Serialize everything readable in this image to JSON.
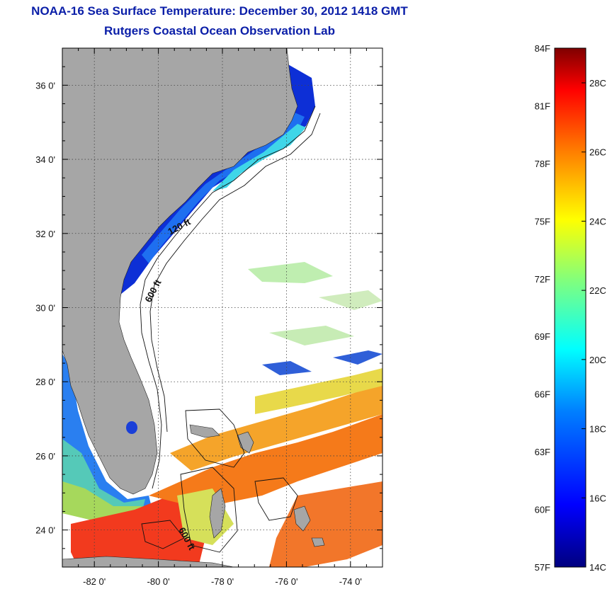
{
  "title": {
    "line1": "NOAA-16 Sea Surface Temperature:  December 30, 2012 1418 GMT",
    "line2": "Rutgers Coastal Ocean Observation Lab"
  },
  "map": {
    "lat_ticks": [
      {
        "value": 36,
        "label": "36 0'"
      },
      {
        "value": 34,
        "label": "34 0'"
      },
      {
        "value": 32,
        "label": "32 0'"
      },
      {
        "value": 30,
        "label": "30 0'"
      },
      {
        "value": 28,
        "label": "28 0'"
      },
      {
        "value": 26,
        "label": "26 0'"
      },
      {
        "value": 24,
        "label": "24 0'"
      }
    ],
    "lon_ticks": [
      {
        "value": -82,
        "label": "-82 0'"
      },
      {
        "value": -80,
        "label": "-80 0'"
      },
      {
        "value": -78,
        "label": "-78 0'"
      },
      {
        "value": -76,
        "label": "-76 0'"
      },
      {
        "value": -74,
        "label": "-74 0'"
      }
    ],
    "lon_range": [
      -83.0,
      -73.0
    ],
    "lat_range": [
      23.0,
      37.0
    ],
    "isobath_labels": [
      {
        "label": "120 ft"
      },
      {
        "label": "600 ft"
      },
      {
        "label": "600 ft"
      }
    ],
    "colors": {
      "land": "#a6a6a6",
      "ocean": "#ffffff",
      "grid": "#555555"
    }
  },
  "colorbar": {
    "f_labels": [
      "84F",
      "81F",
      "78F",
      "75F",
      "72F",
      "69F",
      "66F",
      "63F",
      "60F",
      "57F"
    ],
    "c_labels": [
      "28C",
      "26C",
      "24C",
      "22C",
      "20C",
      "18C",
      "16C",
      "14C"
    ],
    "gradient_colors": [
      "#00007f",
      "#0000ff",
      "#007fff",
      "#00ffff",
      "#7fff7f",
      "#ffff00",
      "#ff7f00",
      "#ff0000",
      "#7f0000"
    ]
  }
}
